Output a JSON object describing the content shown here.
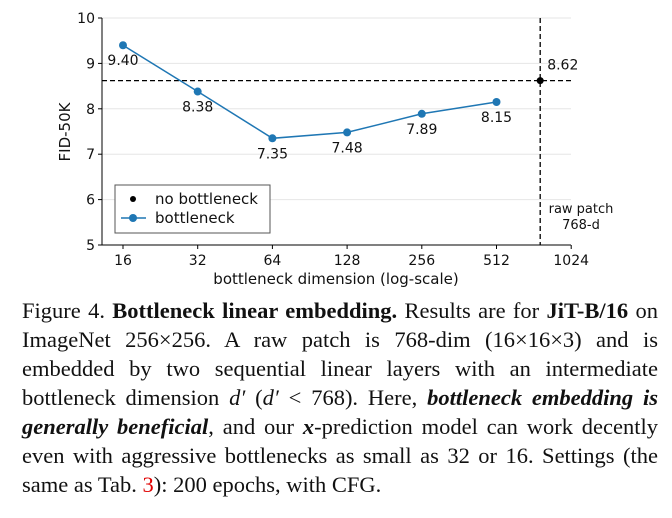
{
  "chart_data": {
    "type": "line",
    "xlabel": "bottleneck dimension (log-scale)",
    "ylabel": "FID-50K",
    "x_scale": "log2",
    "xlim": [
      16,
      1024
    ],
    "ylim": [
      5,
      10
    ],
    "x_ticks": [
      "16",
      "32",
      "64",
      "128",
      "256",
      "512",
      "1024"
    ],
    "y_ticks": [
      "5",
      "6",
      "7",
      "8",
      "9",
      "10"
    ],
    "grid": "horizontal",
    "legend_placement": "lower-left",
    "series": [
      {
        "name": "bottleneck",
        "color": "#1f77b4",
        "x": [
          16,
          32,
          64,
          128,
          256,
          512
        ],
        "y": [
          9.4,
          8.38,
          7.35,
          7.48,
          7.89,
          8.15
        ],
        "labels": [
          "9.40",
          "8.38",
          "7.35",
          "7.48",
          "7.89",
          "8.15"
        ]
      },
      {
        "name": "no bottleneck",
        "color": "#000000",
        "x": [
          768
        ],
        "y": [
          8.62
        ],
        "labels": [
          "8.62"
        ]
      }
    ],
    "annotations": {
      "vline_x": 768,
      "hline_y": 8.62,
      "vline_label_1": "raw patch",
      "vline_label_2": "768-d"
    }
  },
  "caption": {
    "fig": "Figure 4.",
    "title": "Bottleneck linear embedding.",
    "t1": " Results are for ",
    "model": "JiT-B/16",
    "t2": " on ImageNet 256×256. A raw patch is 768-dim (16×16×3) and is embedded by two sequential linear layers with an intermediate bottleneck dimension ",
    "d1": "d′",
    "t3": " (",
    "d2": "d′",
    "t4": " < 768). Here, ",
    "emph": "bottleneck embedding is generally beneficial",
    "t5": ", and our ",
    "xvar": "x",
    "t6": "-prediction model can work de­cently even with aggressive bottlenecks as small as 32 or 16. Set­tings (the same as Tab. ",
    "ref": "3",
    "t7": "): 200 epochs, with CFG."
  }
}
